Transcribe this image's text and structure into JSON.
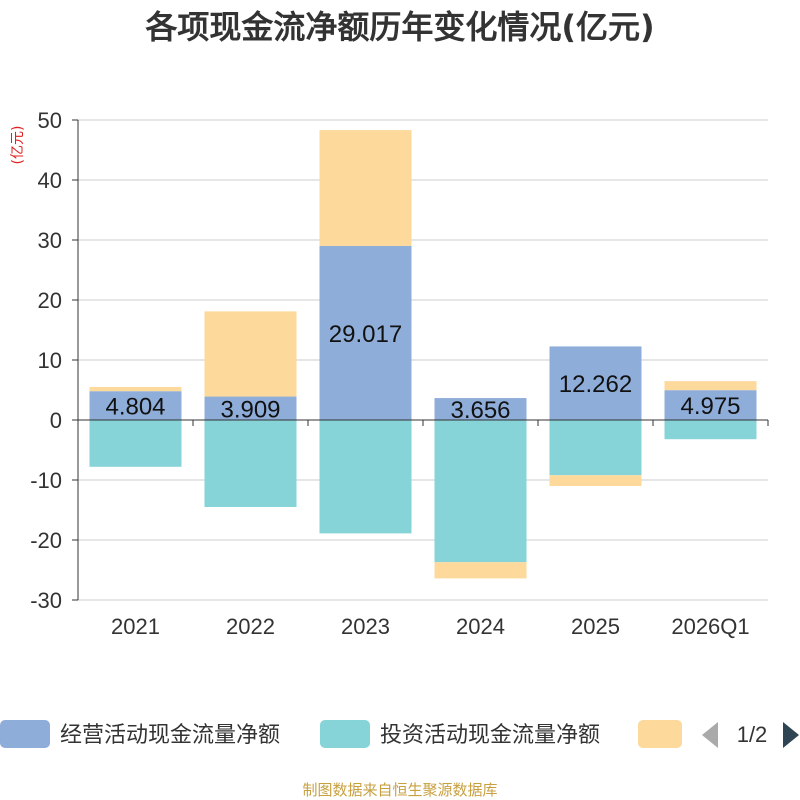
{
  "chart_data": {
    "type": "bar",
    "stacked": true,
    "title": "各项现金流净额历年变化情况(亿元)",
    "unit_label": "(亿元)",
    "categories": [
      "2021",
      "2022",
      "2023",
      "2024",
      "2025",
      "2026Q1"
    ],
    "ylim": [
      -30,
      50
    ],
    "yticks": [
      50,
      40,
      30,
      20,
      10,
      0,
      -10,
      -20,
      -30
    ],
    "grid": true,
    "series": [
      {
        "name": "经营活动现金流量净额",
        "color": "#8fadd9",
        "values": [
          4.804,
          3.909,
          29.017,
          3.656,
          12.262,
          4.975
        ],
        "show_labels": true
      },
      {
        "name": "投资活动现金流量净额",
        "color": "#86d4d8",
        "values": [
          -7.8,
          -14.5,
          -18.9,
          -23.7,
          -9.2,
          -3.2
        ],
        "show_labels": false
      },
      {
        "name": "",
        "color": "#fdd99b",
        "values": [
          0.7,
          14.2,
          19.3,
          -2.7,
          -1.8,
          1.5
        ],
        "show_labels": false
      }
    ],
    "data_labels": [
      "4.804",
      "3.909",
      "29.017",
      "3.656",
      "12.262",
      "4.975"
    ],
    "legend": {
      "position": "bottom",
      "page": "1/2"
    }
  },
  "footer": {
    "source": "制图数据来自恒生聚源数据库"
  }
}
